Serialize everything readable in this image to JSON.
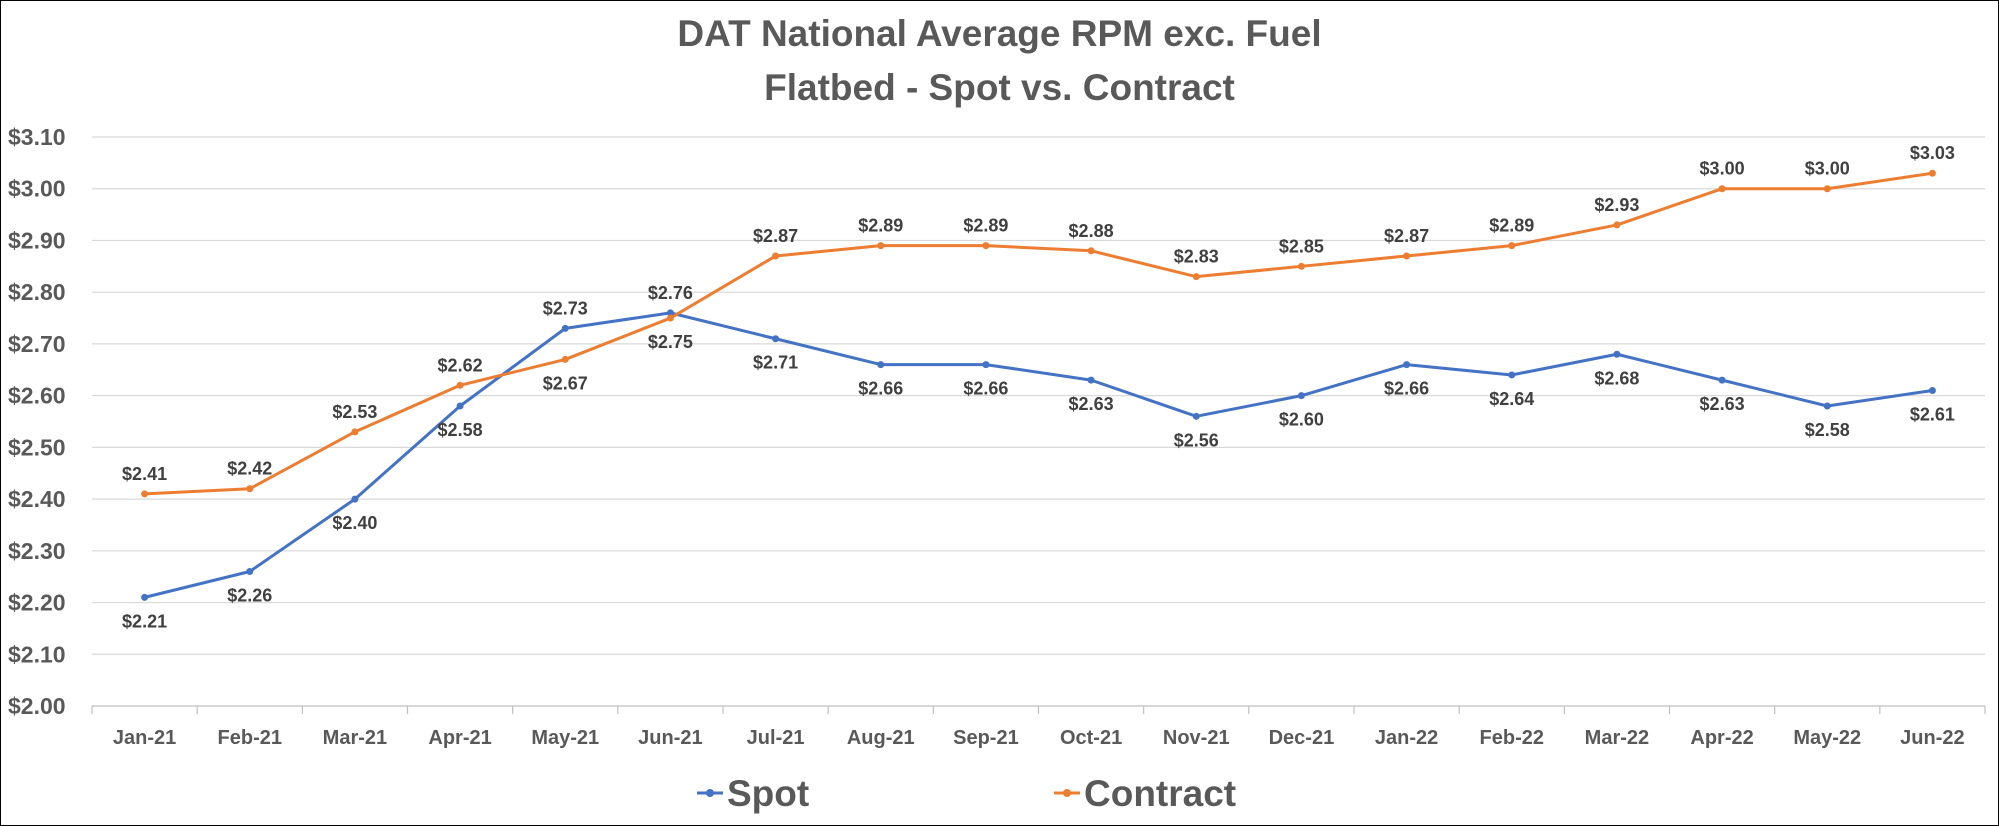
{
  "chart_data": {
    "type": "line",
    "title": "DAT National Average RPM exc. Fuel",
    "subtitle": "Flatbed - Spot vs. Contract",
    "categories": [
      "Jan-21",
      "Feb-21",
      "Mar-21",
      "Apr-21",
      "May-21",
      "Jun-21",
      "Jul-21",
      "Aug-21",
      "Sep-21",
      "Oct-21",
      "Nov-21",
      "Dec-21",
      "Jan-22",
      "Feb-22",
      "Mar-22",
      "Apr-22",
      "May-22",
      "Jun-22"
    ],
    "ylim": [
      2.0,
      3.1
    ],
    "ystep": 0.1,
    "y_tick_labels": [
      "$2.00",
      "$2.10",
      "$2.20",
      "$2.30",
      "$2.40",
      "$2.50",
      "$2.60",
      "$2.70",
      "$2.80",
      "$2.90",
      "$3.00",
      "$3.10"
    ],
    "grid": true,
    "legend_position": "bottom",
    "series": [
      {
        "name": "Spot",
        "color": "#4472C4",
        "values": [
          2.21,
          2.26,
          2.4,
          2.58,
          2.73,
          2.76,
          2.71,
          2.66,
          2.66,
          2.63,
          2.56,
          2.6,
          2.66,
          2.64,
          2.68,
          2.63,
          2.58,
          2.61
        ],
        "labels": [
          "$2.21",
          "$2.26",
          "$2.40",
          "$2.58",
          "$2.73",
          "$2.76",
          "$2.71",
          "$2.66",
          "$2.66",
          "$2.63",
          "$2.56",
          "$2.60",
          "$2.66",
          "$2.64",
          "$2.68",
          "$2.63",
          "$2.58",
          "$2.61"
        ]
      },
      {
        "name": "Contract",
        "color": "#ED7D31",
        "values": [
          2.41,
          2.42,
          2.53,
          2.62,
          2.67,
          2.75,
          2.87,
          2.89,
          2.89,
          2.88,
          2.83,
          2.85,
          2.87,
          2.89,
          2.93,
          3.0,
          3.0,
          3.03
        ],
        "labels": [
          "$2.41",
          "$2.42",
          "$2.53",
          "$2.62",
          "$2.67",
          "$2.75",
          "$2.87",
          "$2.89",
          "$2.89",
          "$2.88",
          "$2.83",
          "$2.85",
          "$2.87",
          "$2.89",
          "$2.93",
          "$3.00",
          "$3.00",
          "$3.03"
        ]
      }
    ]
  }
}
